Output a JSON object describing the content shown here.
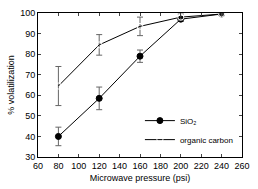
{
  "chart_data": {
    "type": "line",
    "x_label": "Microwave pressure (psi)",
    "y_label": "% volatilization",
    "xlim": [
      60,
      260
    ],
    "xticks": [
      60,
      80,
      100,
      120,
      140,
      160,
      180,
      200,
      220,
      240,
      260
    ],
    "ylim": [
      30,
      100
    ],
    "yticks": [
      30,
      40,
      50,
      60,
      70,
      80,
      90,
      100
    ],
    "grid": false,
    "legend": "lower right",
    "x": [
      80,
      120,
      160,
      200,
      240
    ],
    "series": [
      {
        "name": "SiO₂",
        "color": "#000000",
        "marker": "circle",
        "line_style": "solid",
        "values": [
          40,
          58.5,
          79,
          97,
          99.5
        ],
        "errors": [
          4.5,
          5.5,
          3,
          1,
          0.5
        ]
      },
      {
        "name": "organic carbon",
        "color": "#000000",
        "marker": "circle-open",
        "line_style": "solid",
        "values": [
          64.5,
          84.5,
          93.5,
          98,
          99.5
        ],
        "errors": [
          9.5,
          5,
          4.5,
          1.5,
          0.5
        ]
      }
    ]
  }
}
